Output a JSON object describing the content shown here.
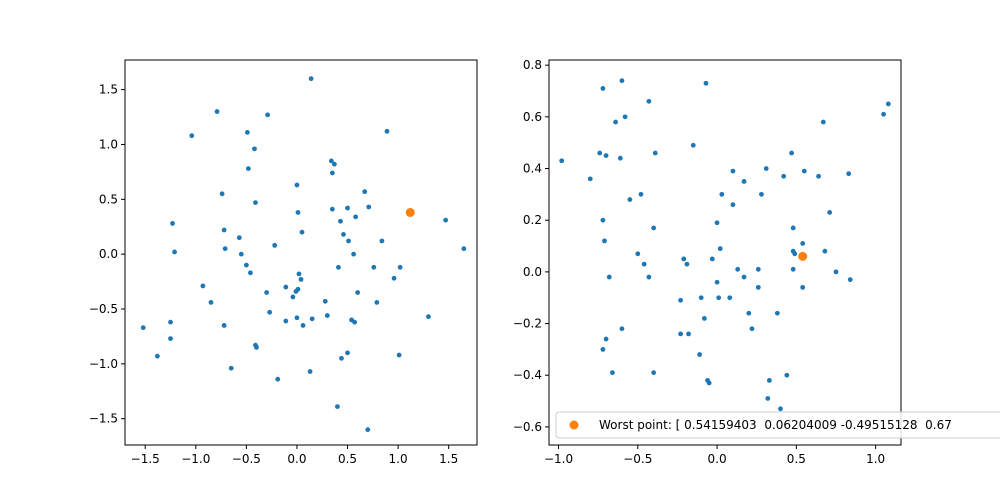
{
  "chart_data": [
    {
      "type": "scatter",
      "xlim": [
        -1.7,
        1.78
      ],
      "ylim": [
        -1.74,
        1.77
      ],
      "xticks": [
        -1.5,
        -1.0,
        -0.5,
        0.0,
        0.5,
        1.0,
        1.5
      ],
      "xtick_labels": [
        "−1.5",
        "−1.0",
        "−0.5",
        "0.0",
        "0.5",
        "1.0",
        "1.5"
      ],
      "yticks": [
        -1.5,
        -1.0,
        -0.5,
        0.0,
        0.5,
        1.0,
        1.5
      ],
      "ytick_labels": [
        "−1.5",
        "−1.0",
        "−0.5",
        "0.0",
        "0.5",
        "1.0",
        "1.5"
      ],
      "grid": false,
      "series": [
        {
          "color": "#1f77b4",
          "marker_size": "small",
          "points": [
            [
              0.14,
              1.6
            ],
            [
              -0.79,
              1.3
            ],
            [
              -0.29,
              1.27
            ],
            [
              -1.04,
              1.08
            ],
            [
              -0.49,
              1.11
            ],
            [
              0.89,
              1.12
            ],
            [
              -0.42,
              0.96
            ],
            [
              0.34,
              0.85
            ],
            [
              0.37,
              0.82
            ],
            [
              -0.48,
              0.78
            ],
            [
              0.35,
              0.74
            ],
            [
              0.0,
              0.63
            ],
            [
              0.67,
              0.57
            ],
            [
              -0.74,
              0.55
            ],
            [
              -0.41,
              0.47
            ],
            [
              0.71,
              0.43
            ],
            [
              0.5,
              0.42
            ],
            [
              0.35,
              0.41
            ],
            [
              0.01,
              0.38
            ],
            [
              0.58,
              0.34
            ],
            [
              0.43,
              0.3
            ],
            [
              1.47,
              0.31
            ],
            [
              -1.23,
              0.28
            ],
            [
              -0.72,
              0.22
            ],
            [
              0.46,
              0.18
            ],
            [
              0.05,
              0.2
            ],
            [
              0.84,
              0.12
            ],
            [
              0.51,
              0.12
            ],
            [
              -0.57,
              0.15
            ],
            [
              -0.22,
              0.08
            ],
            [
              -0.71,
              0.05
            ],
            [
              1.65,
              0.05
            ],
            [
              -1.21,
              0.02
            ],
            [
              -0.55,
              0.0
            ],
            [
              0.56,
              0.0
            ],
            [
              -0.5,
              -0.1
            ],
            [
              0.76,
              -0.12
            ],
            [
              1.02,
              -0.12
            ],
            [
              0.41,
              -0.12
            ],
            [
              -0.46,
              -0.17
            ],
            [
              0.02,
              -0.18
            ],
            [
              0.04,
              -0.23
            ],
            [
              -0.93,
              -0.29
            ],
            [
              -0.11,
              -0.3
            ],
            [
              0.01,
              -0.32
            ],
            [
              -0.01,
              -0.34
            ],
            [
              -0.3,
              -0.35
            ],
            [
              0.6,
              -0.35
            ],
            [
              -0.04,
              -0.39
            ],
            [
              -0.85,
              -0.44
            ],
            [
              0.79,
              -0.44
            ],
            [
              0.28,
              -0.43
            ],
            [
              -0.27,
              -0.53
            ],
            [
              -1.25,
              -0.62
            ],
            [
              1.3,
              -0.57
            ],
            [
              0.3,
              -0.56
            ],
            [
              0.15,
              -0.59
            ],
            [
              0.0,
              -0.58
            ],
            [
              -0.11,
              -0.61
            ],
            [
              0.54,
              -0.6
            ],
            [
              0.57,
              -0.62
            ],
            [
              0.06,
              -0.65
            ],
            [
              -0.72,
              -0.65
            ],
            [
              -1.52,
              -0.67
            ],
            [
              -1.25,
              -0.77
            ],
            [
              -0.41,
              -0.83
            ],
            [
              -0.4,
              -0.85
            ],
            [
              0.5,
              -0.9
            ],
            [
              0.44,
              -0.95
            ],
            [
              -1.38,
              -0.93
            ],
            [
              1.01,
              -0.92
            ],
            [
              -0.65,
              -1.04
            ],
            [
              0.13,
              -1.07
            ],
            [
              -0.19,
              -1.14
            ],
            [
              0.4,
              -1.39
            ],
            [
              0.7,
              -1.6
            ],
            [
              0.96,
              -0.22
            ]
          ]
        },
        {
          "color": "#ff7f0e",
          "marker_size": "large",
          "points": [
            [
              1.12,
              0.38
            ]
          ]
        }
      ]
    },
    {
      "type": "scatter",
      "xlim": [
        -1.06,
        1.16
      ],
      "ylim": [
        -0.67,
        0.82
      ],
      "xticks": [
        -1.0,
        -0.5,
        0.0,
        0.5,
        1.0
      ],
      "xtick_labels": [
        "−1.0",
        "−0.5",
        "0.0",
        "0.5",
        "1.0"
      ],
      "yticks": [
        -0.6,
        -0.4,
        -0.2,
        0.0,
        0.2,
        0.4,
        0.6,
        0.8
      ],
      "ytick_labels": [
        "−0.6",
        "−0.4",
        "−0.2",
        "0.0",
        "0.2",
        "0.4",
        "0.6",
        "0.8"
      ],
      "grid": false,
      "legend_position": "lower-right",
      "legend_label": "Worst point: [ 0.54159403  0.06204009 -0.49515128  0.67",
      "series": [
        {
          "color": "#1f77b4",
          "marker_size": "small",
          "points": [
            [
              -0.6,
              0.74
            ],
            [
              -0.07,
              0.73
            ],
            [
              -0.72,
              0.71
            ],
            [
              1.08,
              0.65
            ],
            [
              -0.43,
              0.66
            ],
            [
              1.05,
              0.61
            ],
            [
              -0.58,
              0.6
            ],
            [
              -0.64,
              0.58
            ],
            [
              0.67,
              0.58
            ],
            [
              -0.15,
              0.49
            ],
            [
              -0.74,
              0.46
            ],
            [
              -0.7,
              0.45
            ],
            [
              -0.61,
              0.44
            ],
            [
              -0.39,
              0.46
            ],
            [
              0.47,
              0.46
            ],
            [
              -0.98,
              0.43
            ],
            [
              0.55,
              0.39
            ],
            [
              0.1,
              0.39
            ],
            [
              0.31,
              0.4
            ],
            [
              -0.8,
              0.36
            ],
            [
              0.17,
              0.35
            ],
            [
              0.42,
              0.37
            ],
            [
              0.64,
              0.37
            ],
            [
              0.83,
              0.38
            ],
            [
              -0.55,
              0.28
            ],
            [
              -0.48,
              0.3
            ],
            [
              0.03,
              0.3
            ],
            [
              0.28,
              0.3
            ],
            [
              0.1,
              0.26
            ],
            [
              0.71,
              0.23
            ],
            [
              -0.72,
              0.2
            ],
            [
              0.0,
              0.19
            ],
            [
              -0.4,
              0.17
            ],
            [
              0.48,
              0.17
            ],
            [
              -0.71,
              0.12
            ],
            [
              0.54,
              0.11
            ],
            [
              -0.5,
              0.07
            ],
            [
              0.48,
              0.08
            ],
            [
              0.49,
              0.07
            ],
            [
              0.68,
              0.08
            ],
            [
              0.02,
              0.09
            ],
            [
              -0.21,
              0.05
            ],
            [
              -0.03,
              0.05
            ],
            [
              -0.19,
              0.03
            ],
            [
              -0.46,
              0.03
            ],
            [
              0.13,
              0.01
            ],
            [
              0.26,
              0.01
            ],
            [
              0.48,
              0.01
            ],
            [
              0.75,
              0.0
            ],
            [
              -0.68,
              -0.02
            ],
            [
              -0.43,
              -0.02
            ],
            [
              0.17,
              -0.02
            ],
            [
              0.84,
              -0.03
            ],
            [
              0.0,
              -0.04
            ],
            [
              0.26,
              -0.06
            ],
            [
              0.54,
              -0.06
            ],
            [
              -0.1,
              -0.1
            ],
            [
              0.01,
              -0.1
            ],
            [
              0.08,
              -0.1
            ],
            [
              -0.23,
              -0.11
            ],
            [
              0.2,
              -0.16
            ],
            [
              0.38,
              -0.16
            ],
            [
              -0.08,
              -0.18
            ],
            [
              0.22,
              -0.22
            ],
            [
              -0.6,
              -0.22
            ],
            [
              -0.23,
              -0.24
            ],
            [
              -0.18,
              -0.24
            ],
            [
              -0.7,
              -0.26
            ],
            [
              -0.72,
              -0.3
            ],
            [
              -0.11,
              -0.32
            ],
            [
              -0.4,
              -0.39
            ],
            [
              -0.66,
              -0.39
            ],
            [
              0.33,
              -0.42
            ],
            [
              -0.06,
              -0.42
            ],
            [
              -0.05,
              -0.43
            ],
            [
              0.44,
              -0.4
            ],
            [
              0.32,
              -0.49
            ],
            [
              0.4,
              -0.53
            ]
          ]
        },
        {
          "color": "#ff7f0e",
          "marker_size": "large",
          "points": [
            [
              0.54,
              0.06
            ]
          ]
        }
      ]
    }
  ]
}
